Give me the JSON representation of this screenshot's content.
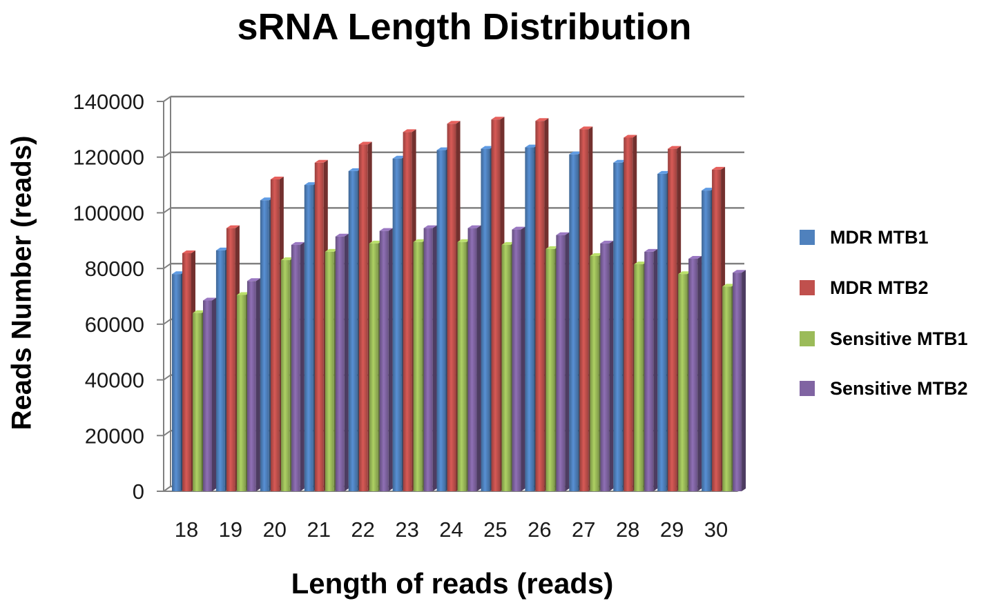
{
  "chart_data": {
    "type": "bar",
    "title": "sRNA Length Distribution",
    "xlabel": "Length of reads (reads)",
    "ylabel": "Reads Number (reads)",
    "categories": [
      "18",
      "19",
      "20",
      "21",
      "22",
      "23",
      "24",
      "25",
      "26",
      "27",
      "28",
      "29",
      "30"
    ],
    "yticks": [
      "0",
      "20000",
      "40000",
      "60000",
      "80000",
      "100000",
      "120000",
      "140000"
    ],
    "ylim": [
      0,
      140000
    ],
    "grid": true,
    "legend_position": "right",
    "series": [
      {
        "name": "MDR MTB1",
        "color": "#4F81BD",
        "values": [
          78000,
          86500,
          104500,
          110000,
          115000,
          119500,
          122500,
          123000,
          123500,
          121000,
          118000,
          114000,
          108000
        ]
      },
      {
        "name": "MDR MTB2",
        "color": "#C0504D",
        "values": [
          85500,
          94500,
          112000,
          118000,
          124500,
          129000,
          132000,
          133500,
          133000,
          130000,
          127000,
          123000,
          115500
        ]
      },
      {
        "name": "Sensitive MTB1",
        "color": "#9BBB59",
        "values": [
          64000,
          70500,
          83000,
          86000,
          89000,
          89500,
          89500,
          88500,
          87000,
          84500,
          81500,
          78000,
          73500
        ]
      },
      {
        "name": "Sensitive MTB2",
        "color": "#8064A2",
        "values": [
          68500,
          75500,
          88500,
          91500,
          93500,
          94500,
          94500,
          94000,
          92000,
          89000,
          86000,
          83500,
          78500
        ]
      }
    ]
  }
}
